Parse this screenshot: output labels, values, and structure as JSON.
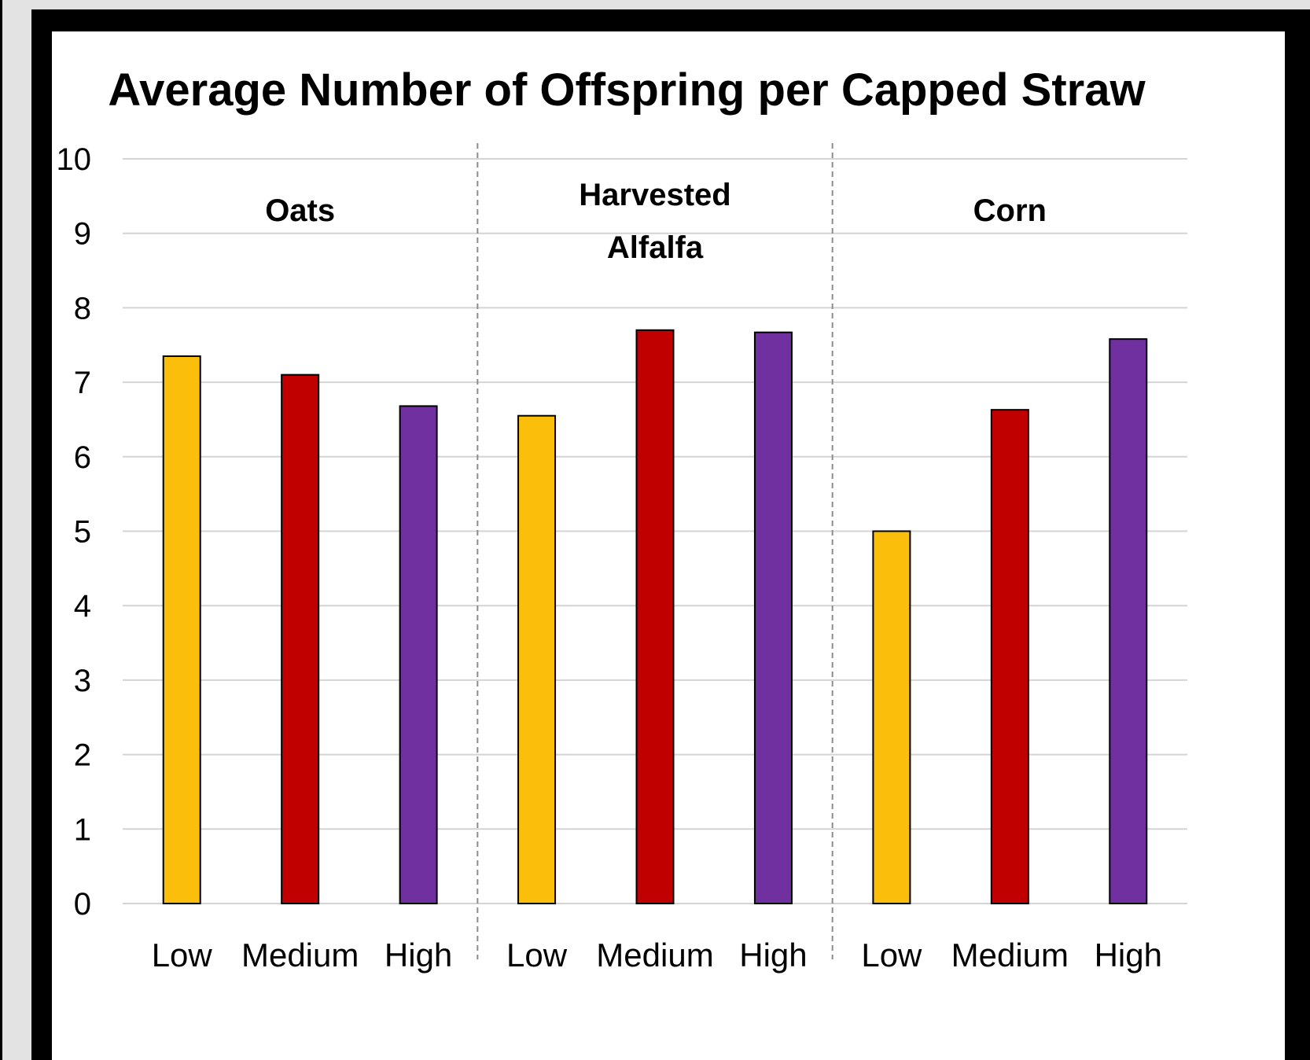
{
  "chart_data": {
    "type": "bar",
    "title": "Average Number of Offspring per Capped Straw",
    "xlabel": "",
    "ylabel": "",
    "ylim": [
      0,
      10
    ],
    "yticks": [
      "0",
      "1",
      "2",
      "3",
      "4",
      "5",
      "6",
      "7",
      "8",
      "9",
      "10"
    ],
    "grid": true,
    "legend": "none",
    "groups": [
      {
        "name_lines": [
          "Oats"
        ],
        "categories": [
          "Low",
          "Medium",
          "High"
        ],
        "values": [
          7.35,
          7.1,
          6.68
        ]
      },
      {
        "name_lines": [
          "Harvested",
          "Alfalfa"
        ],
        "categories": [
          "Low",
          "Medium",
          "High"
        ],
        "values": [
          6.55,
          7.7,
          7.67
        ]
      },
      {
        "name_lines": [
          "Corn"
        ],
        "categories": [
          "Low",
          "Medium",
          "High"
        ],
        "values": [
          5.0,
          6.63,
          7.58
        ]
      }
    ],
    "colors": {
      "Low": "#fbbf0b",
      "Medium": "#c00000",
      "High": "#7030a0"
    }
  }
}
